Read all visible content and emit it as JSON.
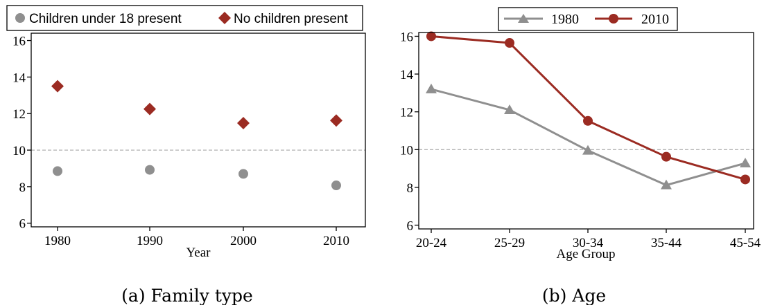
{
  "colors": {
    "gray_series": "#8f8f8f",
    "red_series": "#9b2b22",
    "frame": "#000000",
    "refline": "#a8a8a8"
  },
  "chart_data": [
    {
      "type": "scatter",
      "caption": "(a) Family type",
      "xlabel": "Year",
      "ylabel": "",
      "categories": [
        "1980",
        "1990",
        "2000",
        "2010"
      ],
      "ylim": [
        5.8,
        16.4
      ],
      "yticks": [
        "6",
        "8",
        "10",
        "12",
        "14",
        "16"
      ],
      "reference_line": 10,
      "legend_position": "top",
      "series": [
        {
          "name": "Children under 18 present",
          "marker": "circle",
          "color": "#8f8f8f",
          "values": [
            8.85,
            8.92,
            8.7,
            8.07
          ]
        },
        {
          "name": "No children present",
          "marker": "diamond",
          "color": "#9b2b22",
          "values": [
            13.5,
            12.25,
            11.48,
            11.62
          ]
        }
      ]
    },
    {
      "type": "line",
      "caption": "(b) Age",
      "xlabel": "Age Group",
      "ylabel": "",
      "categories": [
        "20-24",
        "25-29",
        "30-34",
        "35-44",
        "45-54"
      ],
      "ylim": [
        5.8,
        16.2
      ],
      "yticks": [
        "6",
        "8",
        "10",
        "12",
        "14",
        "16"
      ],
      "reference_line": 10,
      "legend_position": "top",
      "series": [
        {
          "name": "1980",
          "marker": "triangle",
          "color": "#8f8f8f",
          "values": [
            13.2,
            12.1,
            9.95,
            8.12,
            9.28
          ]
        },
        {
          "name": "2010",
          "marker": "circle",
          "color": "#9b2b22",
          "values": [
            16.0,
            15.65,
            11.52,
            9.62,
            8.42
          ]
        }
      ]
    }
  ]
}
